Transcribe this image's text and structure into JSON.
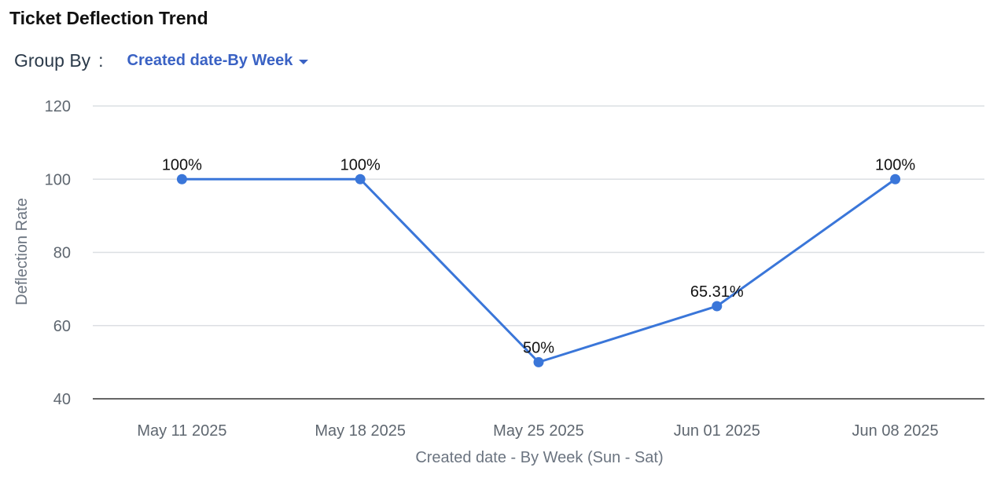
{
  "title": "Ticket Deflection Trend",
  "group_by": {
    "label": "Group By",
    "colon": ":",
    "value": "Created date-By Week"
  },
  "colors": {
    "series": "#3a76d9",
    "grid": "#dcdfe3",
    "baseline": "#333333",
    "accent": "#3a62c4"
  },
  "chart_data": {
    "type": "line",
    "categories": [
      "May 11 2025",
      "May 18 2025",
      "May 25 2025",
      "Jun 01 2025",
      "Jun 08 2025"
    ],
    "series": [
      {
        "values": [
          100,
          100,
          50,
          65.31,
          100
        ],
        "labels": [
          "100%",
          "100%",
          "50%",
          "65.31%",
          "100%"
        ]
      }
    ],
    "xlabel": "Created date - By Week (Sun - Sat)",
    "ylabel": "Deflection Rate",
    "ylim": [
      40,
      120
    ],
    "yticks": [
      40,
      60,
      80,
      100,
      120
    ],
    "grid": true,
    "legend": "none"
  }
}
